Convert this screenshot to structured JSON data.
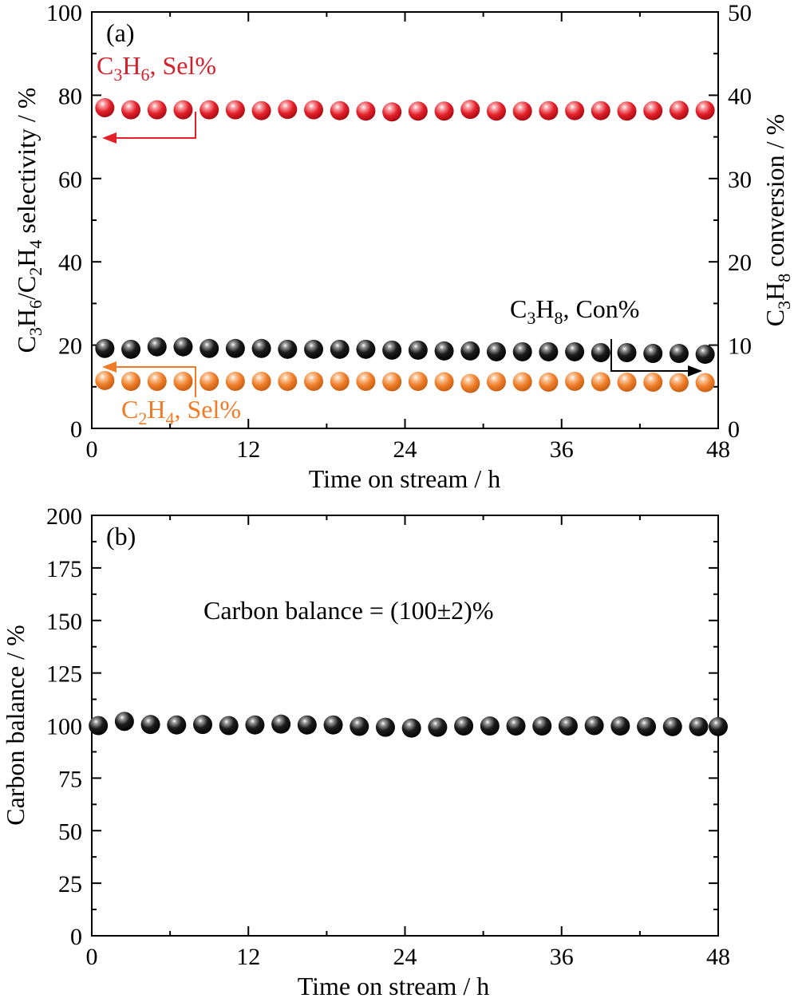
{
  "chart_data": [
    {
      "type": "scatter",
      "panel_label": "(a)",
      "xlabel": "Time on stream / h",
      "ylabel_left": {
        "p1": "C",
        "s1": "3",
        "p2": "H",
        "s2": "6",
        "p3": "/C",
        "s3": "2",
        "p4": "H",
        "s4": "4",
        "p5": " selectivity / %"
      },
      "ylabel_right": {
        "p1": "C",
        "s1": "3",
        "p2": "H",
        "s2": "8",
        "p3": " conversion / %"
      },
      "xlim": [
        0,
        48
      ],
      "ylim_left": [
        0,
        100
      ],
      "ylim_right": [
        0,
        50
      ],
      "x_ticks": [
        "0",
        "12",
        "24",
        "36",
        "48"
      ],
      "y_ticks_left": [
        "0",
        "20",
        "40",
        "60",
        "80",
        "100"
      ],
      "y_ticks_right": [
        "0",
        "10",
        "20",
        "30",
        "40",
        "50"
      ],
      "grid": false,
      "x": [
        1,
        3,
        5,
        7,
        9,
        11,
        13,
        15,
        17,
        19,
        21,
        23,
        25,
        27,
        29,
        31,
        33,
        35,
        37,
        39,
        41,
        43,
        45,
        47
      ],
      "series": [
        {
          "key": "c3h6",
          "axis": "left",
          "color": "#e8202a",
          "values": [
            77,
            76.5,
            76.5,
            76.5,
            76.5,
            76.5,
            76.3,
            76.6,
            76.5,
            76.3,
            76.2,
            76,
            76.2,
            76.2,
            76.6,
            76.2,
            76.2,
            76.3,
            76.3,
            76.3,
            76.2,
            76.3,
            76.4,
            76.4
          ],
          "label": {
            "p1": "C",
            "s1": "3",
            "p2": "H",
            "s2": "6",
            "p3": ", Sel%"
          }
        },
        {
          "key": "c3h8",
          "axis": "right",
          "color": "#000000",
          "values": [
            9.6,
            9.5,
            9.8,
            9.8,
            9.6,
            9.6,
            9.6,
            9.5,
            9.5,
            9.5,
            9.5,
            9.4,
            9.4,
            9.3,
            9.3,
            9.2,
            9.2,
            9.2,
            9.2,
            9.1,
            9.1,
            9.0,
            9.0,
            8.9
          ],
          "label": {
            "p1": "C",
            "s1": "3",
            "p2": "H",
            "s2": "8",
            "p3": ", Con%"
          }
        },
        {
          "key": "c2h4",
          "axis": "left",
          "color": "#f07f2a",
          "values": [
            11.5,
            11.3,
            11.3,
            11.3,
            11.3,
            11.3,
            11.3,
            11.3,
            11.3,
            11.3,
            11.3,
            11.2,
            11.3,
            11.2,
            10.8,
            11.2,
            11.2,
            11.1,
            11.3,
            11.2,
            11.1,
            11.1,
            11.0,
            11.0
          ],
          "label": {
            "p1": "C",
            "s1": "2",
            "p2": "H",
            "s2": "4",
            "p3": ", Sel%"
          }
        }
      ]
    },
    {
      "type": "scatter",
      "panel_label": "(b)",
      "xlabel": "Time on stream / h",
      "ylabel": "Carbon balance / %",
      "xlim": [
        0,
        48
      ],
      "ylim": [
        0,
        200
      ],
      "x_ticks": [
        "0",
        "12",
        "24",
        "36",
        "48"
      ],
      "y_ticks": [
        "0",
        "25",
        "50",
        "75",
        "100",
        "125",
        "150",
        "175",
        "200"
      ],
      "grid": false,
      "annotation": "Carbon balance = (100±2)%",
      "x": [
        0.5,
        2.5,
        4.5,
        6.5,
        8.5,
        10.5,
        12.5,
        14.5,
        16.5,
        18.5,
        20.5,
        22.5,
        24.5,
        26.5,
        28.5,
        30.5,
        32.5,
        34.5,
        36.5,
        38.5,
        40.5,
        42.5,
        44.5,
        46.5,
        48
      ],
      "series": [
        {
          "key": "carbon",
          "color": "#000000",
          "values": [
            100,
            102,
            100.5,
            100.3,
            100.5,
            100,
            100.3,
            100.7,
            100.3,
            100.3,
            99.6,
            99.2,
            98.8,
            99.2,
            99.8,
            99.8,
            99.8,
            99.8,
            99.8,
            100,
            99.8,
            99.5,
            99.5,
            99.5,
            99.5
          ]
        }
      ]
    }
  ]
}
